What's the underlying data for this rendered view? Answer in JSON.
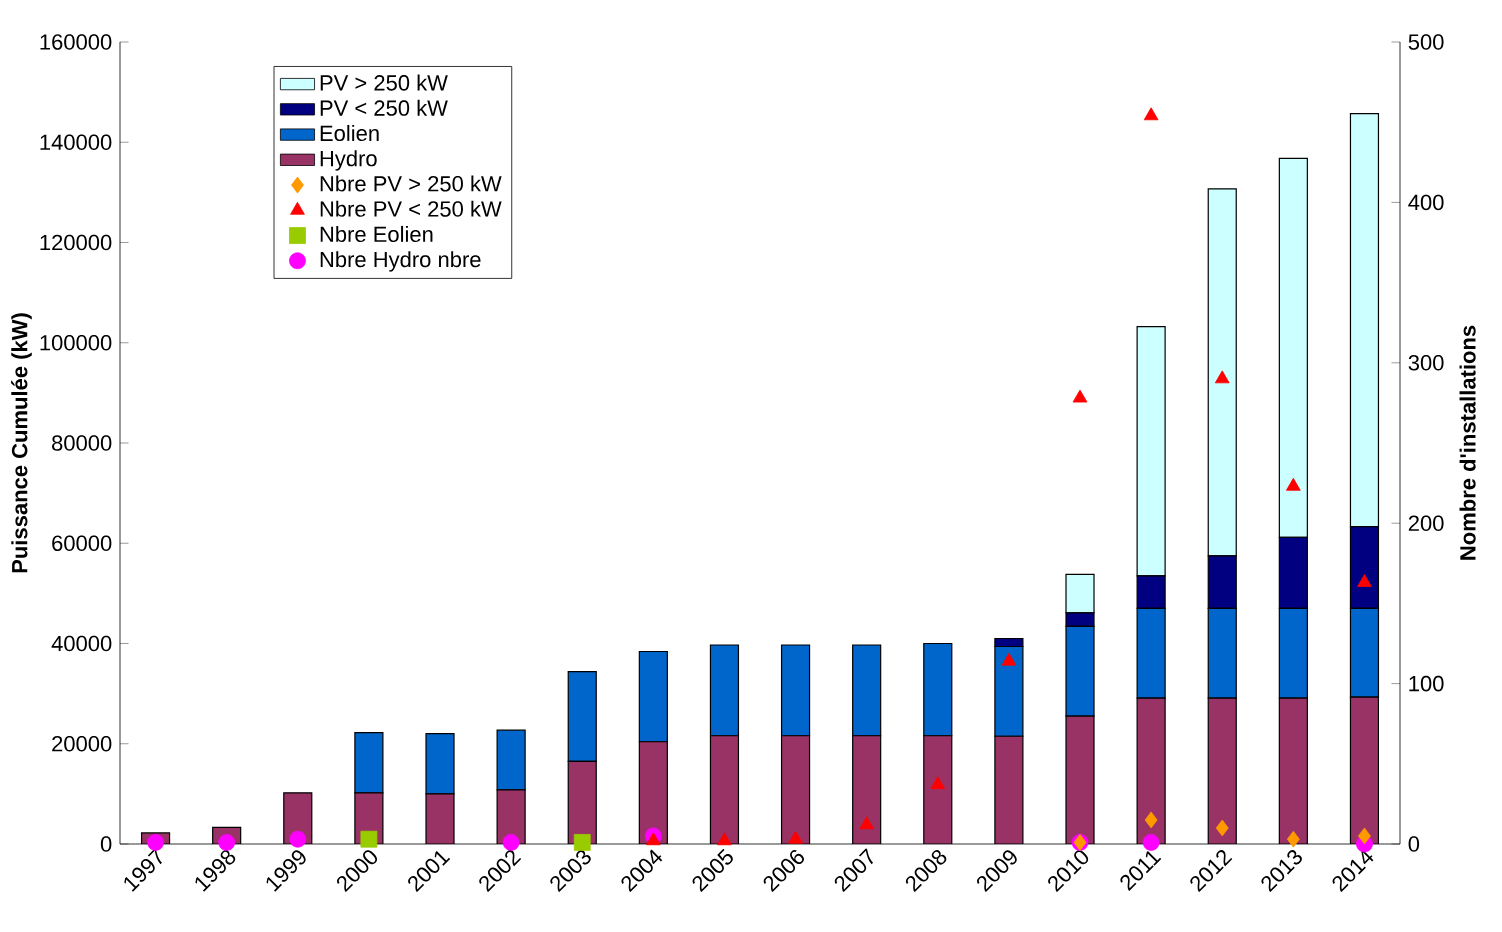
{
  "chart_data": {
    "type": "bar",
    "stacked": true,
    "ylabel": "Puissance Cumulée (kW)",
    "y2label": "Nombre d'installations",
    "categories": [
      "1997",
      "1998",
      "1999",
      "2000",
      "2001",
      "2002",
      "2003",
      "2004",
      "2005",
      "2006",
      "2007",
      "2008",
      "2009",
      "2010",
      "2011",
      "2012",
      "2013",
      "2014"
    ],
    "ylim": [
      0,
      160000
    ],
    "yticks": [
      0,
      20000,
      40000,
      60000,
      80000,
      100000,
      120000,
      140000,
      160000
    ],
    "y2lim": [
      0,
      500
    ],
    "y2ticks": [
      0,
      100,
      200,
      300,
      400,
      500
    ],
    "legend": "top left",
    "grid": false,
    "series": [
      {
        "name": "Hydro",
        "color": "#993366",
        "values": [
          2200,
          3300,
          10200,
          10200,
          10000,
          10800,
          16500,
          20400,
          21600,
          21600,
          21600,
          21600,
          21500,
          25500,
          29100,
          29100,
          29100,
          29300
        ]
      },
      {
        "name": "Eolien",
        "color": "#0066cc",
        "values": [
          null,
          null,
          null,
          12000,
          12000,
          11900,
          17900,
          18000,
          18100,
          18100,
          18100,
          18400,
          17900,
          17900,
          17900,
          17900,
          17900,
          17700
        ]
      },
      {
        "name": "PV < 250 kW",
        "color": "#000080",
        "values": [
          null,
          null,
          null,
          null,
          null,
          null,
          null,
          null,
          null,
          null,
          null,
          null,
          1600,
          2700,
          6500,
          10500,
          14200,
          16300
        ]
      },
      {
        "name": "PV > 250 kW",
        "color": "#ccffff",
        "values": [
          null,
          null,
          null,
          null,
          null,
          null,
          null,
          null,
          null,
          null,
          null,
          null,
          null,
          7700,
          49700,
          73200,
          75600,
          82400
        ]
      },
      {
        "name": "Nbre PV > 250 kW",
        "type": "scatter",
        "axis": "y2",
        "marker": "diamond",
        "color": "#ff9900",
        "values": [
          null,
          null,
          null,
          null,
          null,
          null,
          null,
          null,
          null,
          null,
          null,
          null,
          null,
          1,
          15,
          10,
          3,
          5
        ]
      },
      {
        "name": "Nbre PV < 250 kW",
        "type": "scatter",
        "axis": "y2",
        "marker": "triangle",
        "color": "#ff0000",
        "values": [
          null,
          null,
          null,
          null,
          null,
          null,
          null,
          2,
          2,
          3,
          12,
          37,
          114,
          278,
          454,
          290,
          223,
          163
        ]
      },
      {
        "name": "Nbre Eolien",
        "type": "scatter",
        "axis": "y2",
        "marker": "square",
        "color": "#99cc00",
        "values": [
          null,
          null,
          null,
          3,
          null,
          null,
          1,
          null,
          null,
          null,
          null,
          null,
          null,
          null,
          null,
          null,
          null,
          null
        ]
      },
      {
        "name": "Nbre Hydro nbre",
        "type": "scatter",
        "axis": "y2",
        "marker": "circle",
        "color": "#ff00ff",
        "values": [
          1,
          1,
          3,
          null,
          null,
          1,
          null,
          5,
          null,
          null,
          null,
          null,
          null,
          1,
          1,
          null,
          null,
          0
        ]
      }
    ]
  }
}
